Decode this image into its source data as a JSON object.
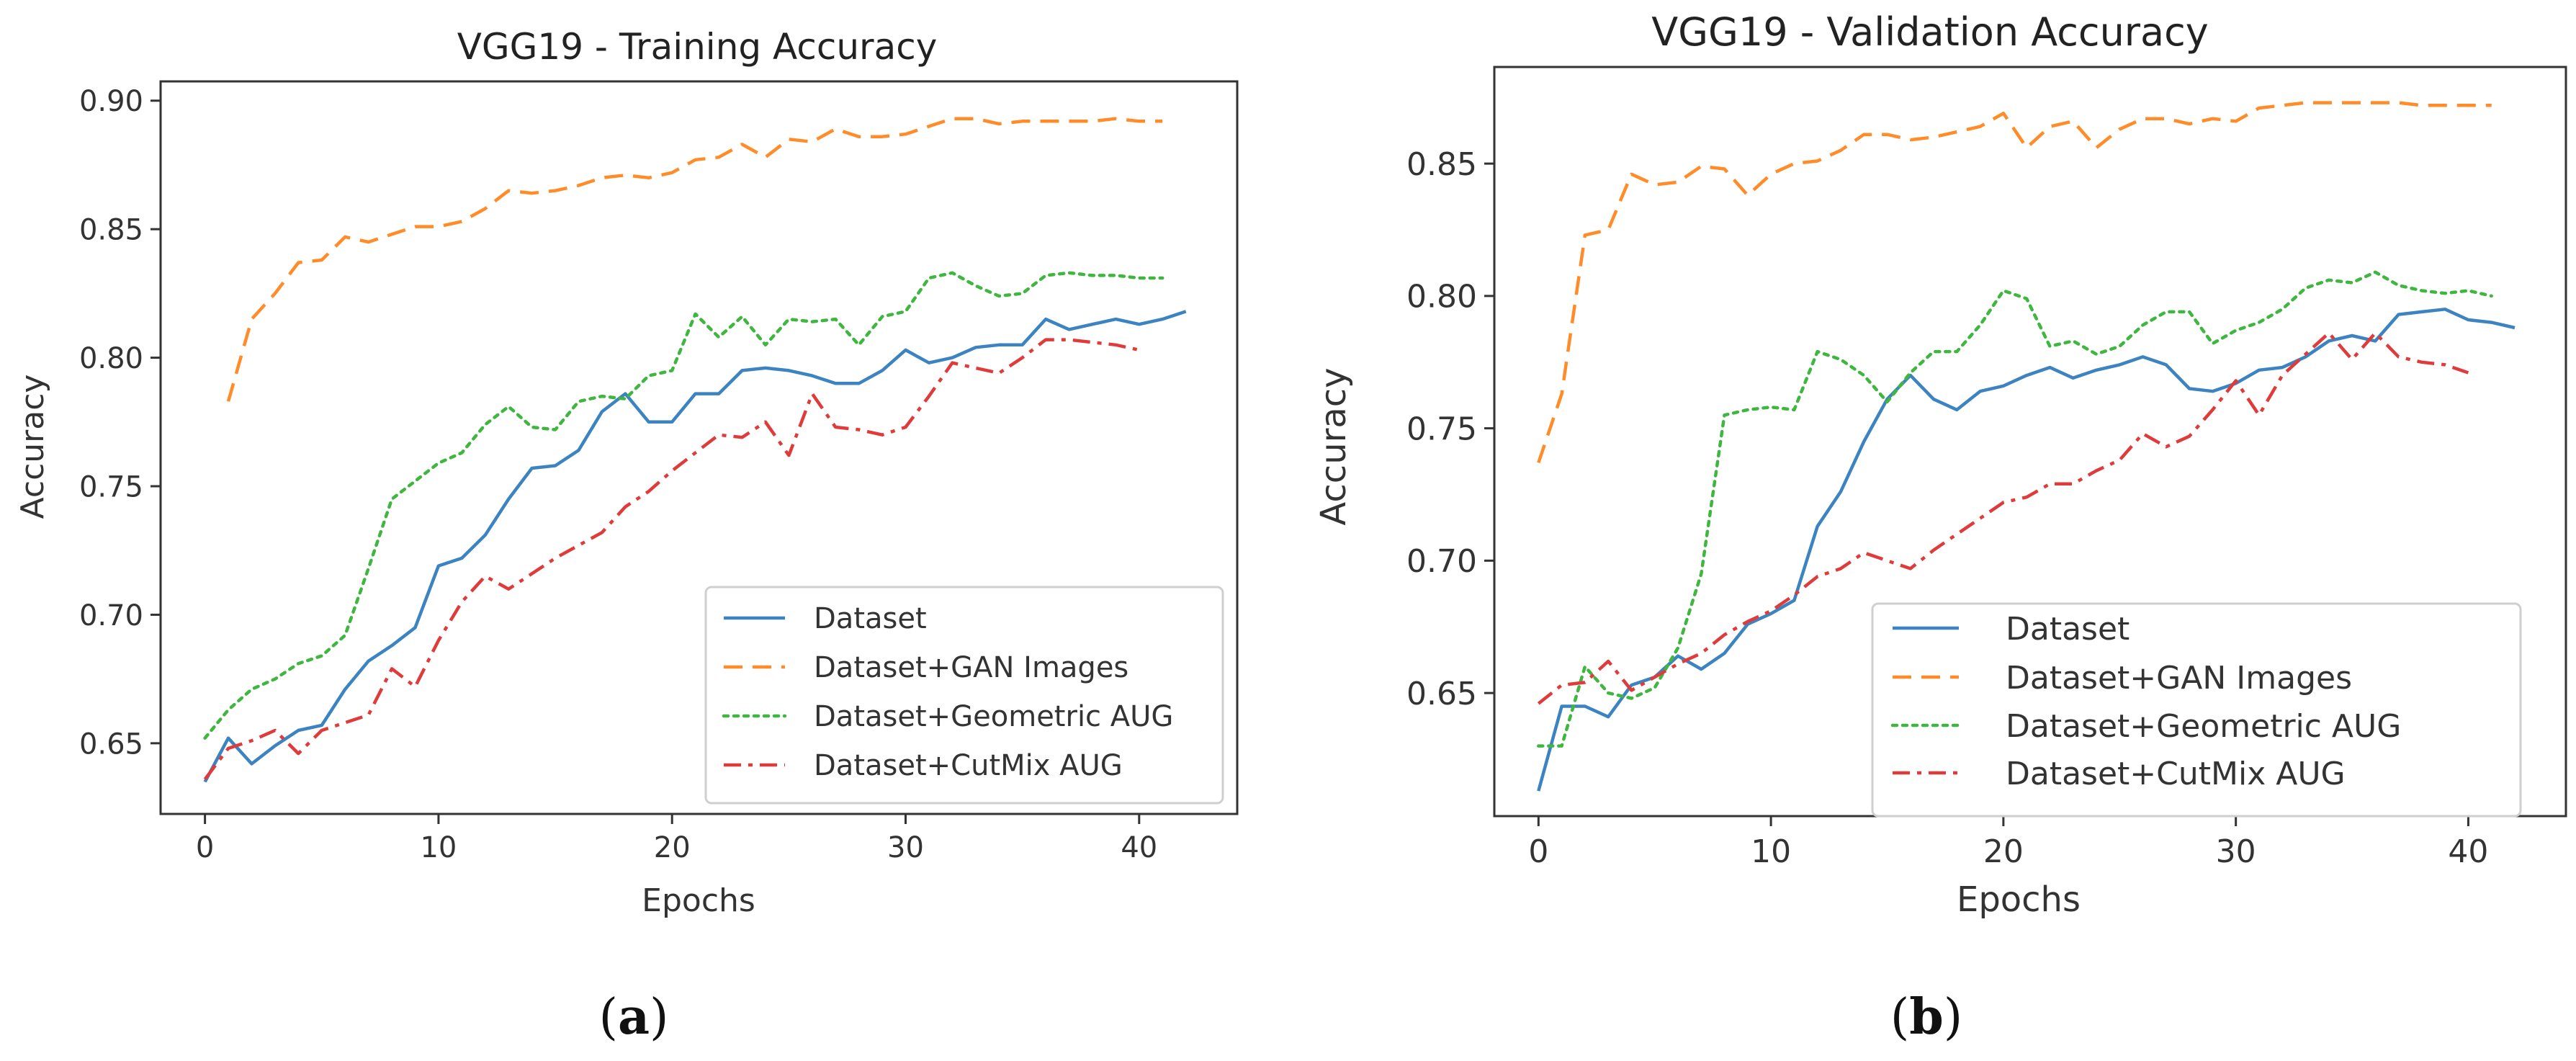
{
  "colors": {
    "dataset": "#3b83c1",
    "gan": "#ff8c28",
    "geometric": "#3fb63f",
    "cutmix": "#e03b3b",
    "axis": "#333333"
  },
  "chart_data": [
    {
      "type": "line",
      "title": "VGG19 - Training Accuracy",
      "xlabel": "Epochs",
      "ylabel": "Accuracy",
      "xlim": [
        -1.9,
        44.2
      ],
      "ylim": [
        0.6225,
        0.9075
      ],
      "xticks": [
        0,
        10,
        20,
        30,
        40
      ],
      "xtick_labels": [
        "0",
        "10",
        "20",
        "30",
        "40"
      ],
      "yticks": [
        0.65,
        0.7,
        0.75,
        0.8,
        0.85,
        0.9
      ],
      "ytick_labels": [
        "0.65",
        "0.70",
        "0.75",
        "0.80",
        "0.85",
        "0.90"
      ],
      "caption_letter": "a",
      "caption_open": "(",
      "caption_close": ")",
      "legend_position": "lower-right",
      "series": [
        {
          "name": "Dataset",
          "style": "solid",
          "color_key": "dataset",
          "x": [
            0,
            1,
            2,
            3,
            4,
            5,
            6,
            7,
            8,
            9,
            10,
            11,
            12,
            13,
            14,
            15,
            16,
            17,
            18,
            19,
            20,
            21,
            22,
            23,
            24,
            25,
            26,
            27,
            28,
            29,
            30,
            31,
            32,
            33,
            34,
            35,
            36,
            37,
            38,
            39,
            40,
            41,
            42
          ],
          "y": [
            0.635,
            0.652,
            0.642,
            0.649,
            0.655,
            0.657,
            0.671,
            0.682,
            0.688,
            0.695,
            0.719,
            0.722,
            0.731,
            0.745,
            0.757,
            0.758,
            0.764,
            0.779,
            0.786,
            0.775,
            0.775,
            0.786,
            0.786,
            0.795,
            0.796,
            0.795,
            0.793,
            0.79,
            0.79,
            0.795,
            0.803,
            0.798,
            0.8,
            0.804,
            0.805,
            0.805,
            0.815,
            0.811,
            0.813,
            0.815,
            0.813,
            0.815,
            0.818
          ]
        },
        {
          "name": "Dataset+GAN Images",
          "style": "dashed",
          "color_key": "gan",
          "x": [
            1,
            2,
            3,
            4,
            5,
            6,
            7,
            8,
            9,
            10,
            11,
            12,
            13,
            14,
            15,
            16,
            17,
            18,
            19,
            20,
            21,
            22,
            23,
            24,
            25,
            26,
            27,
            28,
            29,
            30,
            31,
            32,
            33,
            34,
            35,
            36,
            37,
            38,
            39,
            40,
            41
          ],
          "y": [
            0.783,
            0.815,
            0.825,
            0.837,
            0.838,
            0.847,
            0.845,
            0.848,
            0.851,
            0.851,
            0.853,
            0.858,
            0.865,
            0.864,
            0.865,
            0.867,
            0.87,
            0.871,
            0.87,
            0.872,
            0.877,
            0.878,
            0.883,
            0.878,
            0.885,
            0.884,
            0.889,
            0.886,
            0.886,
            0.887,
            0.89,
            0.893,
            0.893,
            0.891,
            0.892,
            0.892,
            0.892,
            0.892,
            0.893,
            0.892,
            0.892
          ]
        },
        {
          "name": "Dataset+Geometric AUG",
          "style": "dotted",
          "color_key": "geometric",
          "x": [
            0,
            1,
            2,
            3,
            4,
            5,
            6,
            7,
            8,
            9,
            10,
            11,
            12,
            13,
            14,
            15,
            16,
            17,
            18,
            19,
            20,
            21,
            22,
            23,
            24,
            25,
            26,
            27,
            28,
            29,
            30,
            31,
            32,
            33,
            34,
            35,
            36,
            37,
            38,
            39,
            40,
            41
          ],
          "y": [
            0.652,
            0.663,
            0.671,
            0.675,
            0.681,
            0.684,
            0.692,
            0.718,
            0.745,
            0.752,
            0.759,
            0.763,
            0.774,
            0.781,
            0.773,
            0.772,
            0.783,
            0.785,
            0.784,
            0.793,
            0.795,
            0.817,
            0.808,
            0.816,
            0.805,
            0.815,
            0.814,
            0.815,
            0.805,
            0.816,
            0.818,
            0.831,
            0.833,
            0.828,
            0.824,
            0.825,
            0.832,
            0.833,
            0.832,
            0.832,
            0.831,
            0.831
          ]
        },
        {
          "name": "Dataset+CutMix AUG",
          "style": "dashdot",
          "color_key": "cutmix",
          "x": [
            0,
            1,
            2,
            3,
            4,
            5,
            6,
            7,
            8,
            9,
            10,
            11,
            12,
            13,
            14,
            15,
            16,
            17,
            18,
            19,
            20,
            21,
            22,
            23,
            24,
            25,
            26,
            27,
            28,
            29,
            30,
            31,
            32,
            33,
            34,
            35,
            36,
            37,
            38,
            39,
            40
          ],
          "y": [
            0.636,
            0.648,
            0.651,
            0.655,
            0.646,
            0.655,
            0.658,
            0.661,
            0.679,
            0.672,
            0.69,
            0.705,
            0.715,
            0.71,
            0.716,
            0.722,
            0.727,
            0.732,
            0.742,
            0.748,
            0.756,
            0.763,
            0.77,
            0.769,
            0.775,
            0.762,
            0.786,
            0.773,
            0.772,
            0.77,
            0.773,
            0.785,
            0.798,
            0.796,
            0.794,
            0.8,
            0.807,
            0.807,
            0.806,
            0.805,
            0.803
          ]
        }
      ]
    },
    {
      "type": "line",
      "title": "VGG19 - Validation Accuracy",
      "xlabel": "Epochs",
      "ylabel": "Accuracy",
      "xlim": [
        -1.9,
        44.2
      ],
      "ylim": [
        0.6035,
        0.8865
      ],
      "xticks": [
        0,
        10,
        20,
        30,
        40
      ],
      "xtick_labels": [
        "0",
        "10",
        "20",
        "30",
        "40"
      ],
      "yticks": [
        0.65,
        0.7,
        0.75,
        0.8,
        0.85
      ],
      "ytick_labels": [
        "0.65",
        "0.70",
        "0.75",
        "0.80",
        "0.85"
      ],
      "caption_letter": "b",
      "caption_open": "(",
      "caption_close": ")",
      "legend_position": "lower-right",
      "series": [
        {
          "name": "Dataset",
          "style": "solid",
          "color_key": "dataset",
          "x": [
            0,
            1,
            2,
            3,
            4,
            5,
            6,
            7,
            8,
            9,
            10,
            11,
            12,
            13,
            14,
            15,
            16,
            17,
            18,
            19,
            20,
            21,
            22,
            23,
            24,
            25,
            26,
            27,
            28,
            29,
            30,
            31,
            32,
            33,
            34,
            35,
            36,
            37,
            38,
            39,
            40,
            41,
            42
          ],
          "y": [
            0.613,
            0.645,
            0.645,
            0.641,
            0.653,
            0.656,
            0.664,
            0.659,
            0.665,
            0.676,
            0.68,
            0.685,
            0.713,
            0.726,
            0.745,
            0.761,
            0.77,
            0.761,
            0.757,
            0.764,
            0.766,
            0.77,
            0.773,
            0.769,
            0.772,
            0.774,
            0.777,
            0.774,
            0.765,
            0.764,
            0.767,
            0.772,
            0.773,
            0.777,
            0.783,
            0.785,
            0.783,
            0.793,
            0.794,
            0.795,
            0.791,
            0.79,
            0.788
          ]
        },
        {
          "name": "Dataset+GAN Images",
          "style": "dashed",
          "color_key": "gan",
          "x": [
            0,
            1,
            2,
            3,
            4,
            5,
            6,
            7,
            8,
            9,
            10,
            11,
            12,
            13,
            14,
            15,
            16,
            17,
            18,
            19,
            20,
            21,
            22,
            23,
            24,
            25,
            26,
            27,
            28,
            29,
            30,
            31,
            32,
            33,
            34,
            35,
            36,
            37,
            38,
            39,
            40,
            41
          ],
          "y": [
            0.737,
            0.763,
            0.823,
            0.825,
            0.846,
            0.842,
            0.843,
            0.849,
            0.848,
            0.838,
            0.846,
            0.85,
            0.851,
            0.855,
            0.861,
            0.861,
            0.859,
            0.86,
            0.862,
            0.864,
            0.869,
            0.856,
            0.864,
            0.866,
            0.856,
            0.863,
            0.867,
            0.867,
            0.865,
            0.867,
            0.866,
            0.871,
            0.872,
            0.873,
            0.873,
            0.873,
            0.873,
            0.873,
            0.872,
            0.872,
            0.872,
            0.872
          ]
        },
        {
          "name": "Dataset+Geometric AUG",
          "style": "dotted",
          "color_key": "geometric",
          "x": [
            0,
            1,
            2,
            3,
            4,
            5,
            6,
            7,
            8,
            9,
            10,
            11,
            12,
            13,
            14,
            15,
            16,
            17,
            18,
            19,
            20,
            21,
            22,
            23,
            24,
            25,
            26,
            27,
            28,
            29,
            30,
            31,
            32,
            33,
            34,
            35,
            36,
            37,
            38,
            39,
            40,
            41
          ],
          "y": [
            0.63,
            0.63,
            0.66,
            0.65,
            0.648,
            0.652,
            0.667,
            0.695,
            0.755,
            0.757,
            0.758,
            0.757,
            0.779,
            0.776,
            0.77,
            0.76,
            0.771,
            0.779,
            0.779,
            0.789,
            0.802,
            0.799,
            0.781,
            0.783,
            0.778,
            0.781,
            0.789,
            0.794,
            0.794,
            0.782,
            0.787,
            0.79,
            0.795,
            0.803,
            0.806,
            0.805,
            0.809,
            0.804,
            0.802,
            0.801,
            0.802,
            0.8
          ]
        },
        {
          "name": "Dataset+CutMix AUG",
          "style": "dashdot",
          "color_key": "cutmix",
          "x": [
            0,
            1,
            2,
            3,
            4,
            5,
            6,
            7,
            8,
            9,
            10,
            11,
            12,
            13,
            14,
            15,
            16,
            17,
            18,
            19,
            20,
            21,
            22,
            23,
            24,
            25,
            26,
            27,
            28,
            29,
            30,
            31,
            32,
            33,
            34,
            35,
            36,
            37,
            38,
            39,
            40
          ],
          "y": [
            0.646,
            0.653,
            0.654,
            0.662,
            0.651,
            0.656,
            0.661,
            0.665,
            0.672,
            0.677,
            0.681,
            0.687,
            0.694,
            0.697,
            0.703,
            0.7,
            0.697,
            0.704,
            0.71,
            0.716,
            0.722,
            0.724,
            0.729,
            0.729,
            0.734,
            0.738,
            0.748,
            0.743,
            0.747,
            0.757,
            0.768,
            0.755,
            0.77,
            0.778,
            0.786,
            0.776,
            0.786,
            0.777,
            0.775,
            0.774,
            0.771
          ]
        }
      ]
    }
  ]
}
